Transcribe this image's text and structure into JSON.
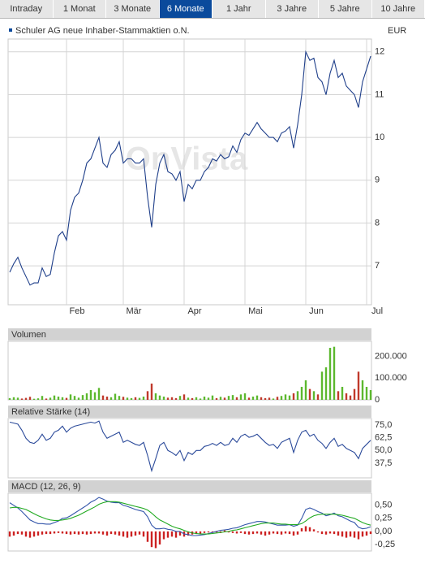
{
  "tabs": {
    "items": [
      "Intraday",
      "1 Monat",
      "3 Monate",
      "6 Monate",
      "1 Jahr",
      "3 Jahre",
      "5 Jahre",
      "10 Jahre"
    ],
    "selected": 3
  },
  "chart_data": [
    {
      "type": "line",
      "title": "Schuler AG neue Inhaber-Stammaktien o.N.",
      "currency": "EUR",
      "watermark": "OnVista",
      "xlim": [
        0,
        89
      ],
      "xticks": [
        {
          "value": 14,
          "label": "Feb"
        },
        {
          "value": 28,
          "label": "Mär"
        },
        {
          "value": 43,
          "label": "Apr"
        },
        {
          "value": 58,
          "label": "Mai"
        },
        {
          "value": 73,
          "label": "Jun"
        },
        {
          "value": 88,
          "label": "Jul"
        }
      ],
      "ylim": [
        6.09,
        12.3
      ],
      "yticks": [
        7,
        8,
        9,
        10,
        11,
        12
      ],
      "grid": true,
      "series": [
        {
          "color": "#1f3f8a",
          "values": [
            6.85,
            7.05,
            7.2,
            6.95,
            6.75,
            6.55,
            6.6,
            6.6,
            6.95,
            6.75,
            6.8,
            7.3,
            7.7,
            7.8,
            7.6,
            8.3,
            8.6,
            8.7,
            9.0,
            9.4,
            9.5,
            9.75,
            10.0,
            9.4,
            9.3,
            9.6,
            9.7,
            9.9,
            9.4,
            9.5,
            9.5,
            9.4,
            9.4,
            9.5,
            8.6,
            7.9,
            8.9,
            9.4,
            9.6,
            9.2,
            9.15,
            9.0,
            9.2,
            8.5,
            8.9,
            8.8,
            9.0,
            9.0,
            9.2,
            9.3,
            9.5,
            9.45,
            9.6,
            9.5,
            9.55,
            9.8,
            9.65,
            9.95,
            10.1,
            10.05,
            10.2,
            10.35,
            10.2,
            10.1,
            10.0,
            10.0,
            9.9,
            10.1,
            10.15,
            10.25,
            9.75,
            10.3,
            11.0,
            12.0,
            11.8,
            11.85,
            11.4,
            11.3,
            11.0,
            11.5,
            11.8,
            11.4,
            11.5,
            11.2,
            11.1,
            11.0,
            10.7,
            11.3,
            11.6,
            11.9
          ]
        }
      ]
    },
    {
      "type": "bar",
      "title": "Volumen",
      "ylim": [
        0,
        270000
      ],
      "yticks": [
        0,
        {
          "value": 100000,
          "label": "100.000"
        },
        {
          "value": 200000,
          "label": "200.000"
        }
      ],
      "series": [
        {
          "color": "#5cb82e",
          "values": [
            8000,
            12000,
            10000,
            null,
            null,
            null,
            5000,
            7000,
            18000,
            null,
            10000,
            20000,
            15000,
            12000,
            null,
            25000,
            18000,
            10000,
            22000,
            30000,
            45000,
            35000,
            55000,
            null,
            null,
            12000,
            28000,
            18000,
            null,
            10000,
            8000,
            null,
            9000,
            15000,
            null,
            null,
            30000,
            20000,
            15000,
            null,
            null,
            null,
            18000,
            null,
            10000,
            null,
            12000,
            6000,
            15000,
            10000,
            20000,
            null,
            14000,
            null,
            18000,
            22000,
            null,
            25000,
            30000,
            null,
            15000,
            20000,
            null,
            null,
            null,
            6000,
            null,
            18000,
            25000,
            20000,
            null,
            40000,
            60000,
            90000,
            null,
            40000,
            null,
            130000,
            150000,
            240000,
            245000,
            null,
            60000,
            null,
            null,
            null,
            null,
            90000,
            60000,
            45000
          ]
        },
        {
          "color": "#c0392b",
          "values": [
            null,
            null,
            null,
            6000,
            9000,
            14000,
            null,
            null,
            null,
            6000,
            null,
            null,
            null,
            null,
            9000,
            null,
            null,
            null,
            null,
            null,
            null,
            null,
            null,
            20000,
            15000,
            null,
            null,
            null,
            14000,
            null,
            null,
            12000,
            null,
            null,
            40000,
            75000,
            null,
            null,
            null,
            10000,
            12000,
            8000,
            null,
            25000,
            null,
            8000,
            null,
            null,
            null,
            null,
            null,
            8000,
            null,
            10000,
            null,
            null,
            12000,
            null,
            null,
            10000,
            null,
            null,
            12000,
            8000,
            10000,
            null,
            14000,
            null,
            null,
            null,
            30000,
            null,
            null,
            null,
            50000,
            null,
            25000,
            null,
            null,
            null,
            null,
            40000,
            null,
            30000,
            20000,
            50000,
            130000,
            null,
            null,
            null
          ]
        }
      ]
    },
    {
      "type": "line",
      "title": "Relative Stärke (14)",
      "ylim": [
        23,
        81.5
      ],
      "yticks": [
        {
          "value": 37.5,
          "label": "37,5"
        },
        {
          "value": 50,
          "label": "50,0"
        },
        {
          "value": 62.5,
          "label": "62,5"
        },
        {
          "value": 75,
          "label": "75,0"
        }
      ],
      "series": [
        {
          "color": "#2b4a9a",
          "values": [
            78,
            77,
            76,
            70,
            62,
            58,
            57,
            60,
            66,
            60,
            62,
            68,
            70,
            74,
            68,
            72,
            74,
            75,
            76,
            77,
            78,
            77,
            79,
            68,
            62,
            64,
            66,
            68,
            58,
            60,
            58,
            56,
            55,
            58,
            45,
            30,
            42,
            55,
            58,
            50,
            48,
            45,
            50,
            40,
            48,
            46,
            50,
            50,
            54,
            55,
            57,
            55,
            58,
            55,
            56,
            62,
            58,
            64,
            66,
            63,
            64,
            66,
            62,
            58,
            55,
            56,
            52,
            58,
            60,
            62,
            48,
            60,
            68,
            70,
            64,
            66,
            60,
            57,
            52,
            58,
            62,
            54,
            56,
            52,
            50,
            48,
            42,
            52,
            56,
            60
          ]
        }
      ]
    },
    {
      "type": "line",
      "title": "MACD (12, 26, 9)",
      "ylim": [
        -0.375,
        0.73
      ],
      "yticks": [
        {
          "value": -0.25,
          "label": "-0,25"
        },
        {
          "value": 0,
          "label": "0,00"
        },
        {
          "value": 0.25,
          "label": "0,25"
        },
        {
          "value": 0.5,
          "label": "0,50"
        }
      ],
      "series": [
        {
          "type": "bar",
          "color": "#cc2222",
          "values": [
            -0.1,
            -0.08,
            -0.05,
            -0.06,
            -0.1,
            -0.12,
            -0.1,
            -0.08,
            -0.06,
            -0.05,
            -0.05,
            -0.04,
            -0.03,
            -0.04,
            -0.05,
            -0.06,
            -0.05,
            -0.06,
            -0.05,
            -0.06,
            -0.05,
            -0.04,
            -0.04,
            -0.06,
            -0.08,
            -0.05,
            -0.06,
            -0.08,
            -0.1,
            -0.12,
            -0.1,
            -0.08,
            -0.06,
            -0.1,
            -0.2,
            -0.3,
            -0.32,
            -0.25,
            -0.15,
            -0.12,
            -0.1,
            -0.12,
            -0.08,
            -0.1,
            -0.08,
            -0.06,
            -0.05,
            -0.04,
            -0.03,
            -0.02,
            -0.02,
            -0.02,
            -0.03,
            0.02,
            -0.02,
            -0.03,
            -0.04,
            -0.03,
            -0.05,
            -0.06,
            -0.05,
            -0.04,
            -0.06,
            -0.08,
            -0.06,
            -0.04,
            -0.05,
            -0.06,
            -0.04,
            -0.05,
            -0.08,
            -0.06,
            0.06,
            0.1,
            0.08,
            0.04,
            -0.02,
            -0.05,
            -0.06,
            -0.04,
            -0.05,
            -0.08,
            -0.1,
            -0.12,
            -0.1,
            -0.12,
            -0.15,
            -0.1,
            -0.08,
            -0.05
          ]
        },
        {
          "color": "#3355aa",
          "values": [
            0.55,
            0.5,
            0.45,
            0.38,
            0.3,
            0.22,
            0.18,
            0.15,
            0.15,
            0.14,
            0.14,
            0.17,
            0.2,
            0.25,
            0.26,
            0.3,
            0.35,
            0.4,
            0.45,
            0.5,
            0.56,
            0.6,
            0.65,
            0.62,
            0.58,
            0.56,
            0.55,
            0.55,
            0.5,
            0.48,
            0.45,
            0.42,
            0.4,
            0.38,
            0.28,
            0.12,
            0.05,
            0.05,
            0.06,
            0.04,
            0.03,
            0.0,
            0.0,
            -0.05,
            -0.06,
            -0.08,
            -0.08,
            -0.07,
            -0.06,
            -0.04,
            -0.02,
            0.0,
            0.02,
            0.03,
            0.04,
            0.06,
            0.07,
            0.1,
            0.13,
            0.15,
            0.17,
            0.19,
            0.19,
            0.18,
            0.16,
            0.14,
            0.12,
            0.12,
            0.12,
            0.13,
            0.1,
            0.12,
            0.25,
            0.42,
            0.45,
            0.42,
            0.38,
            0.35,
            0.3,
            0.32,
            0.35,
            0.3,
            0.28,
            0.24,
            0.2,
            0.17,
            0.08,
            0.05,
            0.06,
            0.09
          ]
        },
        {
          "color": "#22aa22",
          "values": [
            0.45,
            0.46,
            0.46,
            0.44,
            0.42,
            0.38,
            0.34,
            0.3,
            0.27,
            0.24,
            0.22,
            0.21,
            0.21,
            0.22,
            0.23,
            0.25,
            0.28,
            0.31,
            0.35,
            0.39,
            0.43,
            0.47,
            0.52,
            0.55,
            0.57,
            0.57,
            0.57,
            0.56,
            0.54,
            0.52,
            0.5,
            0.48,
            0.46,
            0.44,
            0.41,
            0.35,
            0.28,
            0.22,
            0.18,
            0.14,
            0.1,
            0.07,
            0.05,
            0.02,
            -0.01,
            -0.03,
            -0.04,
            -0.05,
            -0.05,
            -0.05,
            -0.04,
            -0.03,
            -0.02,
            -0.01,
            0.0,
            0.02,
            0.03,
            0.05,
            0.07,
            0.09,
            0.11,
            0.13,
            0.15,
            0.16,
            0.16,
            0.16,
            0.15,
            0.14,
            0.14,
            0.13,
            0.13,
            0.13,
            0.15,
            0.2,
            0.26,
            0.3,
            0.32,
            0.33,
            0.33,
            0.33,
            0.33,
            0.32,
            0.31,
            0.29,
            0.27,
            0.25,
            0.21,
            0.17,
            0.14,
            0.12
          ]
        }
      ]
    }
  ]
}
